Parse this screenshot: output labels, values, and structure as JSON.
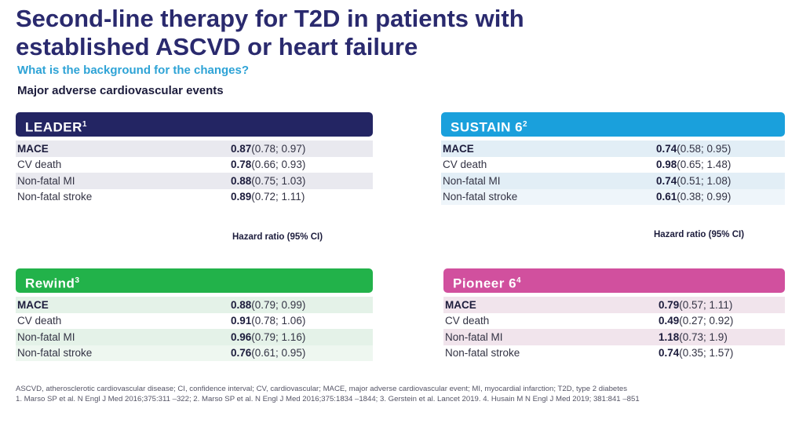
{
  "title_line1": "Second-line therapy for T2D in patients with",
  "title_line2": "established ASCVD or heart failure",
  "subtitle": "What is the background for the changes?",
  "section_heading": "Major adverse cardiovascular events",
  "colors": {
    "leader": "#232563",
    "sustain": "#1aa0dc",
    "rewind": "#22b24a",
    "pioneer": "#d1509e",
    "title": "#2a2a6e",
    "subtitle": "#2ea3d6"
  },
  "panels": {
    "leader": {
      "name": "LEADER",
      "ref": "1",
      "rows": [
        {
          "label": "MACE",
          "hr": "0.87",
          "ci": "(0.78; 0.97)"
        },
        {
          "label": "CV death",
          "hr": "0.78",
          "ci": "(0.66; 0.93)"
        },
        {
          "label": "Non-fatal MI",
          "hr": "0.88",
          "ci": "(0.75; 1.03)"
        },
        {
          "label": "Non-fatal stroke",
          "hr": "0.89",
          "ci": "(0.72; 1.11)"
        }
      ]
    },
    "sustain": {
      "name": "SUSTAIN 6",
      "ref": "2",
      "rows": [
        {
          "label": "MACE",
          "hr": "0.74",
          "ci": "(0.58; 0.95)"
        },
        {
          "label": "CV death",
          "hr": "0.98",
          "ci": "(0.65; 1.48)"
        },
        {
          "label": "Non-fatal MI",
          "hr": "0.74",
          "ci": "(0.51; 1.08)"
        },
        {
          "label": "Non-fatal stroke",
          "hr": "0.61",
          "ci": "(0.38; 0.99)"
        }
      ]
    },
    "rewind": {
      "name": "Rewind",
      "ref": "3",
      "rows": [
        {
          "label": "MACE",
          "hr": "0.88",
          "ci": "(0.79; 0.99)"
        },
        {
          "label": "CV death",
          "hr": "0.91",
          "ci": "(0.78; 1.06)"
        },
        {
          "label": "Non-fatal MI",
          "hr": "0.96",
          "ci": "(0.79; 1.16)"
        },
        {
          "label": "Non-fatal stroke",
          "hr": "0.76",
          "ci": "(0.61; 0.95)"
        }
      ]
    },
    "pioneer": {
      "name": "Pioneer 6",
      "ref": "4",
      "rows": [
        {
          "label": "MACE",
          "hr": "0.79",
          "ci": "(0.57; 1.11)"
        },
        {
          "label": "CV death",
          "hr": "0.49",
          "ci": "(0.27; 0.92)"
        },
        {
          "label": "Non-fatal MI",
          "hr": "1.18",
          "ci": "(0.73; 1.9)"
        },
        {
          "label": "Non-fatal stroke",
          "hr": "0.74",
          "ci": "(0.35; 1.57)"
        }
      ]
    }
  },
  "hazard_ratio_label": "Hazard ratio (95% CI)",
  "footer": {
    "abbreviations": "ASCVD, atherosclerotic cardiovascular disease; CI, confidence interval; CV, cardiovascular; MACE, major adverse cardiovascular event; MI, myocardial infarction; T2D, type 2 diabetes",
    "references": "1. Marso SP et al. N Engl J Med 2016;375:311 –322; 2. Marso SP et al. N Engl J Med 2016;375:1834 –1844; 3. Gerstein et al. Lancet 2019. 4. Husain M N Engl J Med 2019; 381:841 –851"
  }
}
